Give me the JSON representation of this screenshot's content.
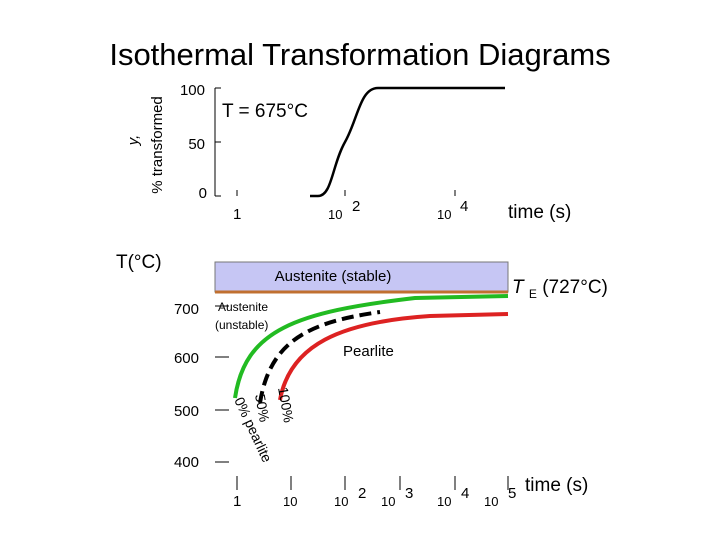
{
  "title": "Isothermal Transformation Diagrams",
  "top_chart": {
    "ylabel_line1": "y,",
    "ylabel_line2": "% transformed",
    "annotation": "T = 675°C",
    "xlabel": "time (s)",
    "yticks": [
      "0",
      "50",
      "100"
    ],
    "xticks": [
      {
        "base": "1",
        "exp": ""
      },
      {
        "base": "10",
        "exp": "2"
      },
      {
        "base": "10",
        "exp": "4"
      }
    ]
  },
  "bottom_chart": {
    "ylabel": "T(°C)",
    "xlabel": "time (s)",
    "yticks": [
      "400",
      "500",
      "600",
      "700"
    ],
    "xticks": [
      {
        "base": "1",
        "exp": ""
      },
      {
        "base": "10",
        "exp": ""
      },
      {
        "base": "10",
        "exp": "2"
      },
      {
        "base": "10",
        "exp": "3"
      },
      {
        "base": "10",
        "exp": "4"
      },
      {
        "base": "10",
        "exp": "5"
      }
    ],
    "te_label_main": "T",
    "te_label_sub": "E",
    "te_label_rest": " (727°C)",
    "region_stable": "Austenite (stable)",
    "region_unstable_line1": "Austenite",
    "region_unstable_line2": "(unstable)",
    "region_pearlite": "Pearlite",
    "curve_labels": [
      "0% pearlite",
      "50%",
      "100%"
    ]
  },
  "chart_data": [
    {
      "type": "line",
      "title": "",
      "xlabel": "time (s)",
      "ylabel": "y, % transformed",
      "x_scale": "log",
      "ylim": [
        0,
        100
      ],
      "series": [
        {
          "name": "",
          "x": [
            10,
            100,
            200,
            500,
            1000,
            2000,
            5000,
            10000,
            100000
          ],
          "y": [
            0,
            0,
            2,
            20,
            50,
            80,
            98,
            100,
            100
          ]
        }
      ]
    },
    {
      "type": "line",
      "title": "",
      "xlabel": "time (s)",
      "ylabel": "T(°C)",
      "x_scale": "log",
      "ylim": [
        400,
        727
      ],
      "reference_lines": [
        {
          "label": "TE (727°C)",
          "y": 727,
          "color": "#c07030"
        }
      ],
      "series": [
        {
          "name": "0% pearlite",
          "color": "#22bb22",
          "x": [
            1,
            1.5,
            3,
            8,
            30,
            200,
            2000,
            10000
          ],
          "y": [
            500,
            560,
            610,
            650,
            680,
            700,
            712,
            715
          ]
        },
        {
          "name": "50%",
          "color": "#000000",
          "dashed": true,
          "x": [
            2,
            3,
            6,
            15,
            60,
            300,
            600
          ],
          "y": [
            510,
            560,
            610,
            650,
            680,
            695,
            698
          ]
        },
        {
          "name": "100%",
          "color": "#dd2222",
          "x": [
            5,
            7,
            15,
            50,
            300,
            3000,
            10000
          ],
          "y": [
            500,
            560,
            610,
            650,
            680,
            695,
            698
          ]
        }
      ]
    }
  ]
}
